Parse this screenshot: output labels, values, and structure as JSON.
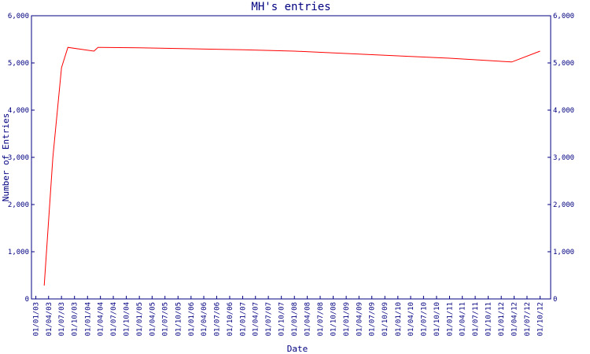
{
  "chart_data": {
    "type": "line",
    "title": "MH's entries",
    "x_label": "Date",
    "y_label": "Number of Entries",
    "x": [
      "01/03/03",
      "01/05/03",
      "01/07/03",
      "15/08/03",
      "15/02/04",
      "15/03/04",
      "01/01/05",
      "01/01/06",
      "01/01/07",
      "01/01/08",
      "01/01/09",
      "01/01/10",
      "01/01/11",
      "15/03/12",
      "01/10/12"
    ],
    "series": [
      {
        "name": "MH",
        "color": "#ff0000",
        "values": [
          283,
          3000,
          4900,
          5330,
          5250,
          5330,
          5320,
          5300,
          5280,
          5250,
          5200,
          5150,
          5100,
          5020,
          5250
        ]
      }
    ],
    "xlim": [
      "01/12/02",
      "15/12/12"
    ],
    "xticks": [
      "01/01/03",
      "01/04/03",
      "01/07/03",
      "01/10/03",
      "01/01/04",
      "01/04/04",
      "01/07/04",
      "01/10/04",
      "01/01/05",
      "01/04/05",
      "01/07/05",
      "01/10/05",
      "01/01/06",
      "01/04/06",
      "01/07/06",
      "01/10/06",
      "01/01/07",
      "01/04/07",
      "01/07/07",
      "01/10/07",
      "01/01/08",
      "01/04/08",
      "01/07/08",
      "01/10/08",
      "01/01/09",
      "01/04/09",
      "01/07/09",
      "01/10/09",
      "01/01/10",
      "01/04/10",
      "01/07/10",
      "01/10/10",
      "01/01/11",
      "01/04/11",
      "01/07/11",
      "01/10/11",
      "01/01/12",
      "01/04/12",
      "01/07/12",
      "01/10/12"
    ],
    "ylim": [
      0,
      6000
    ],
    "yticks": [
      0,
      {
        "value": 1000,
        "label": "1,000"
      },
      {
        "value": 2000,
        "label": "2,000"
      },
      {
        "value": 3000,
        "label": "3,000"
      },
      {
        "value": 4000,
        "label": "4,000"
      },
      {
        "value": 5000,
        "label": "5,000"
      },
      {
        "value": 6000,
        "label": "6,000"
      }
    ],
    "axis_color": "#000080"
  }
}
